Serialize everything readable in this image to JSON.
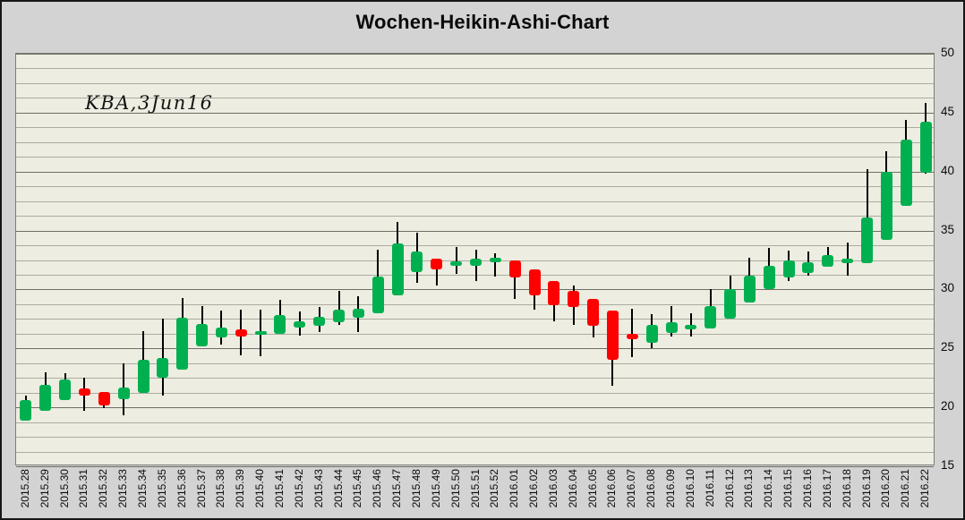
{
  "window": {
    "background": "#d3d3d3"
  },
  "chart_data": {
    "type": "candlestick",
    "variant": "heikin-ashi-weekly",
    "title": "Wochen-Heikin-Ashi-Chart",
    "annotation": "KBA,3Jun16",
    "legend": "none",
    "grid": "horizontal-minor-and-major",
    "y_axis": {
      "side": "right",
      "min": 15,
      "max": 50,
      "major_step": 5,
      "minor_step": 1.25,
      "tick_labels": [
        "15",
        "20",
        "25",
        "30",
        "35",
        "40",
        "45",
        "50"
      ]
    },
    "x_axis": {
      "label_rotation_deg": -90,
      "labels_from": "candles"
    },
    "colors": {
      "up": "#00b050",
      "down": "#ff0000",
      "wick": "#000000",
      "plot_background": "#eeede2",
      "frame_background": "#d3d3d3",
      "grid_minor": "#ababa0",
      "grid_major": "#6e6e66",
      "text": "#0a0a0a"
    },
    "candles": [
      {
        "x": "2015.28",
        "open": 18.9,
        "high": 21.0,
        "low": 18.9,
        "close": 20.6
      },
      {
        "x": "2015.29",
        "open": 19.7,
        "high": 23.0,
        "low": 19.7,
        "close": 21.9
      },
      {
        "x": "2015.30",
        "open": 20.6,
        "high": 22.9,
        "low": 20.6,
        "close": 22.4
      },
      {
        "x": "2015.31",
        "open": 21.6,
        "high": 22.5,
        "low": 19.7,
        "close": 21.0
      },
      {
        "x": "2015.32",
        "open": 21.3,
        "high": 21.3,
        "low": 19.9,
        "close": 20.2
      },
      {
        "x": "2015.33",
        "open": 20.7,
        "high": 23.7,
        "low": 19.3,
        "close": 21.7
      },
      {
        "x": "2015.34",
        "open": 21.2,
        "high": 26.5,
        "low": 21.2,
        "close": 24.0
      },
      {
        "x": "2015.35",
        "open": 22.5,
        "high": 27.5,
        "low": 21.0,
        "close": 24.2
      },
      {
        "x": "2015.36",
        "open": 23.2,
        "high": 29.3,
        "low": 23.2,
        "close": 27.6
      },
      {
        "x": "2015.37",
        "open": 25.2,
        "high": 28.6,
        "low": 25.2,
        "close": 27.1
      },
      {
        "x": "2015.38",
        "open": 25.9,
        "high": 28.2,
        "low": 25.3,
        "close": 26.8
      },
      {
        "x": "2015.39",
        "open": 26.6,
        "high": 28.3,
        "low": 24.4,
        "close": 26.0
      },
      {
        "x": "2015.40",
        "open": 26.2,
        "high": 28.3,
        "low": 24.3,
        "close": 26.5
      },
      {
        "x": "2015.41",
        "open": 26.2,
        "high": 29.1,
        "low": 26.2,
        "close": 27.8
      },
      {
        "x": "2015.42",
        "open": 26.8,
        "high": 28.1,
        "low": 26.1,
        "close": 27.3
      },
      {
        "x": "2015.43",
        "open": 26.9,
        "high": 28.5,
        "low": 26.4,
        "close": 27.7
      },
      {
        "x": "2015.44",
        "open": 27.2,
        "high": 29.9,
        "low": 27.0,
        "close": 28.3
      },
      {
        "x": "2015.45",
        "open": 27.6,
        "high": 29.4,
        "low": 26.4,
        "close": 28.4
      },
      {
        "x": "2015.46",
        "open": 28.0,
        "high": 33.4,
        "low": 28.0,
        "close": 31.1
      },
      {
        "x": "2015.47",
        "open": 29.5,
        "high": 35.7,
        "low": 29.5,
        "close": 33.9
      },
      {
        "x": "2015.48",
        "open": 31.5,
        "high": 34.8,
        "low": 30.6,
        "close": 33.2
      },
      {
        "x": "2015.49",
        "open": 32.6,
        "high": 32.6,
        "low": 30.3,
        "close": 31.7
      },
      {
        "x": "2015.50",
        "open": 32.0,
        "high": 33.6,
        "low": 31.3,
        "close": 32.4
      },
      {
        "x": "2015.51",
        "open": 32.0,
        "high": 33.4,
        "low": 30.7,
        "close": 32.6
      },
      {
        "x": "2015.52",
        "open": 32.3,
        "high": 33.1,
        "low": 31.1,
        "close": 32.7
      },
      {
        "x": "2016.01",
        "open": 32.5,
        "high": 32.5,
        "low": 29.2,
        "close": 31.0
      },
      {
        "x": "2016.02",
        "open": 31.7,
        "high": 31.7,
        "low": 28.3,
        "close": 29.5
      },
      {
        "x": "2016.03",
        "open": 30.7,
        "high": 30.7,
        "low": 27.3,
        "close": 28.7
      },
      {
        "x": "2016.04",
        "open": 29.9,
        "high": 30.3,
        "low": 27.0,
        "close": 28.5
      },
      {
        "x": "2016.05",
        "open": 29.2,
        "high": 29.2,
        "low": 25.9,
        "close": 26.9
      },
      {
        "x": "2016.06",
        "open": 28.2,
        "high": 28.2,
        "low": 21.8,
        "close": 24.0
      },
      {
        "x": "2016.07",
        "open": 26.2,
        "high": 28.4,
        "low": 24.3,
        "close": 25.8
      },
      {
        "x": "2016.08",
        "open": 25.5,
        "high": 27.9,
        "low": 25.0,
        "close": 27.0
      },
      {
        "x": "2016.09",
        "open": 26.3,
        "high": 28.6,
        "low": 26.0,
        "close": 27.2
      },
      {
        "x": "2016.10",
        "open": 26.6,
        "high": 28.0,
        "low": 26.0,
        "close": 27.0
      },
      {
        "x": "2016.11",
        "open": 26.7,
        "high": 30.0,
        "low": 26.7,
        "close": 28.6
      },
      {
        "x": "2016.12",
        "open": 27.5,
        "high": 31.2,
        "low": 27.5,
        "close": 30.0
      },
      {
        "x": "2016.13",
        "open": 28.9,
        "high": 32.7,
        "low": 28.9,
        "close": 31.2
      },
      {
        "x": "2016.14",
        "open": 30.0,
        "high": 33.5,
        "low": 30.0,
        "close": 32.0
      },
      {
        "x": "2016.15",
        "open": 31.0,
        "high": 33.3,
        "low": 30.7,
        "close": 32.5
      },
      {
        "x": "2016.16",
        "open": 31.4,
        "high": 33.2,
        "low": 31.2,
        "close": 32.3
      },
      {
        "x": "2016.17",
        "open": 31.9,
        "high": 33.6,
        "low": 31.9,
        "close": 32.9
      },
      {
        "x": "2016.18",
        "open": 32.2,
        "high": 34.0,
        "low": 31.2,
        "close": 32.6
      },
      {
        "x": "2016.19",
        "open": 32.2,
        "high": 40.2,
        "low": 32.2,
        "close": 36.1
      },
      {
        "x": "2016.20",
        "open": 34.2,
        "high": 41.7,
        "low": 34.2,
        "close": 40.0
      },
      {
        "x": "2016.21",
        "open": 37.1,
        "high": 44.4,
        "low": 37.1,
        "close": 42.7
      },
      {
        "x": "2016.22",
        "open": 39.9,
        "high": 45.8,
        "low": 39.8,
        "close": 44.2
      }
    ]
  }
}
